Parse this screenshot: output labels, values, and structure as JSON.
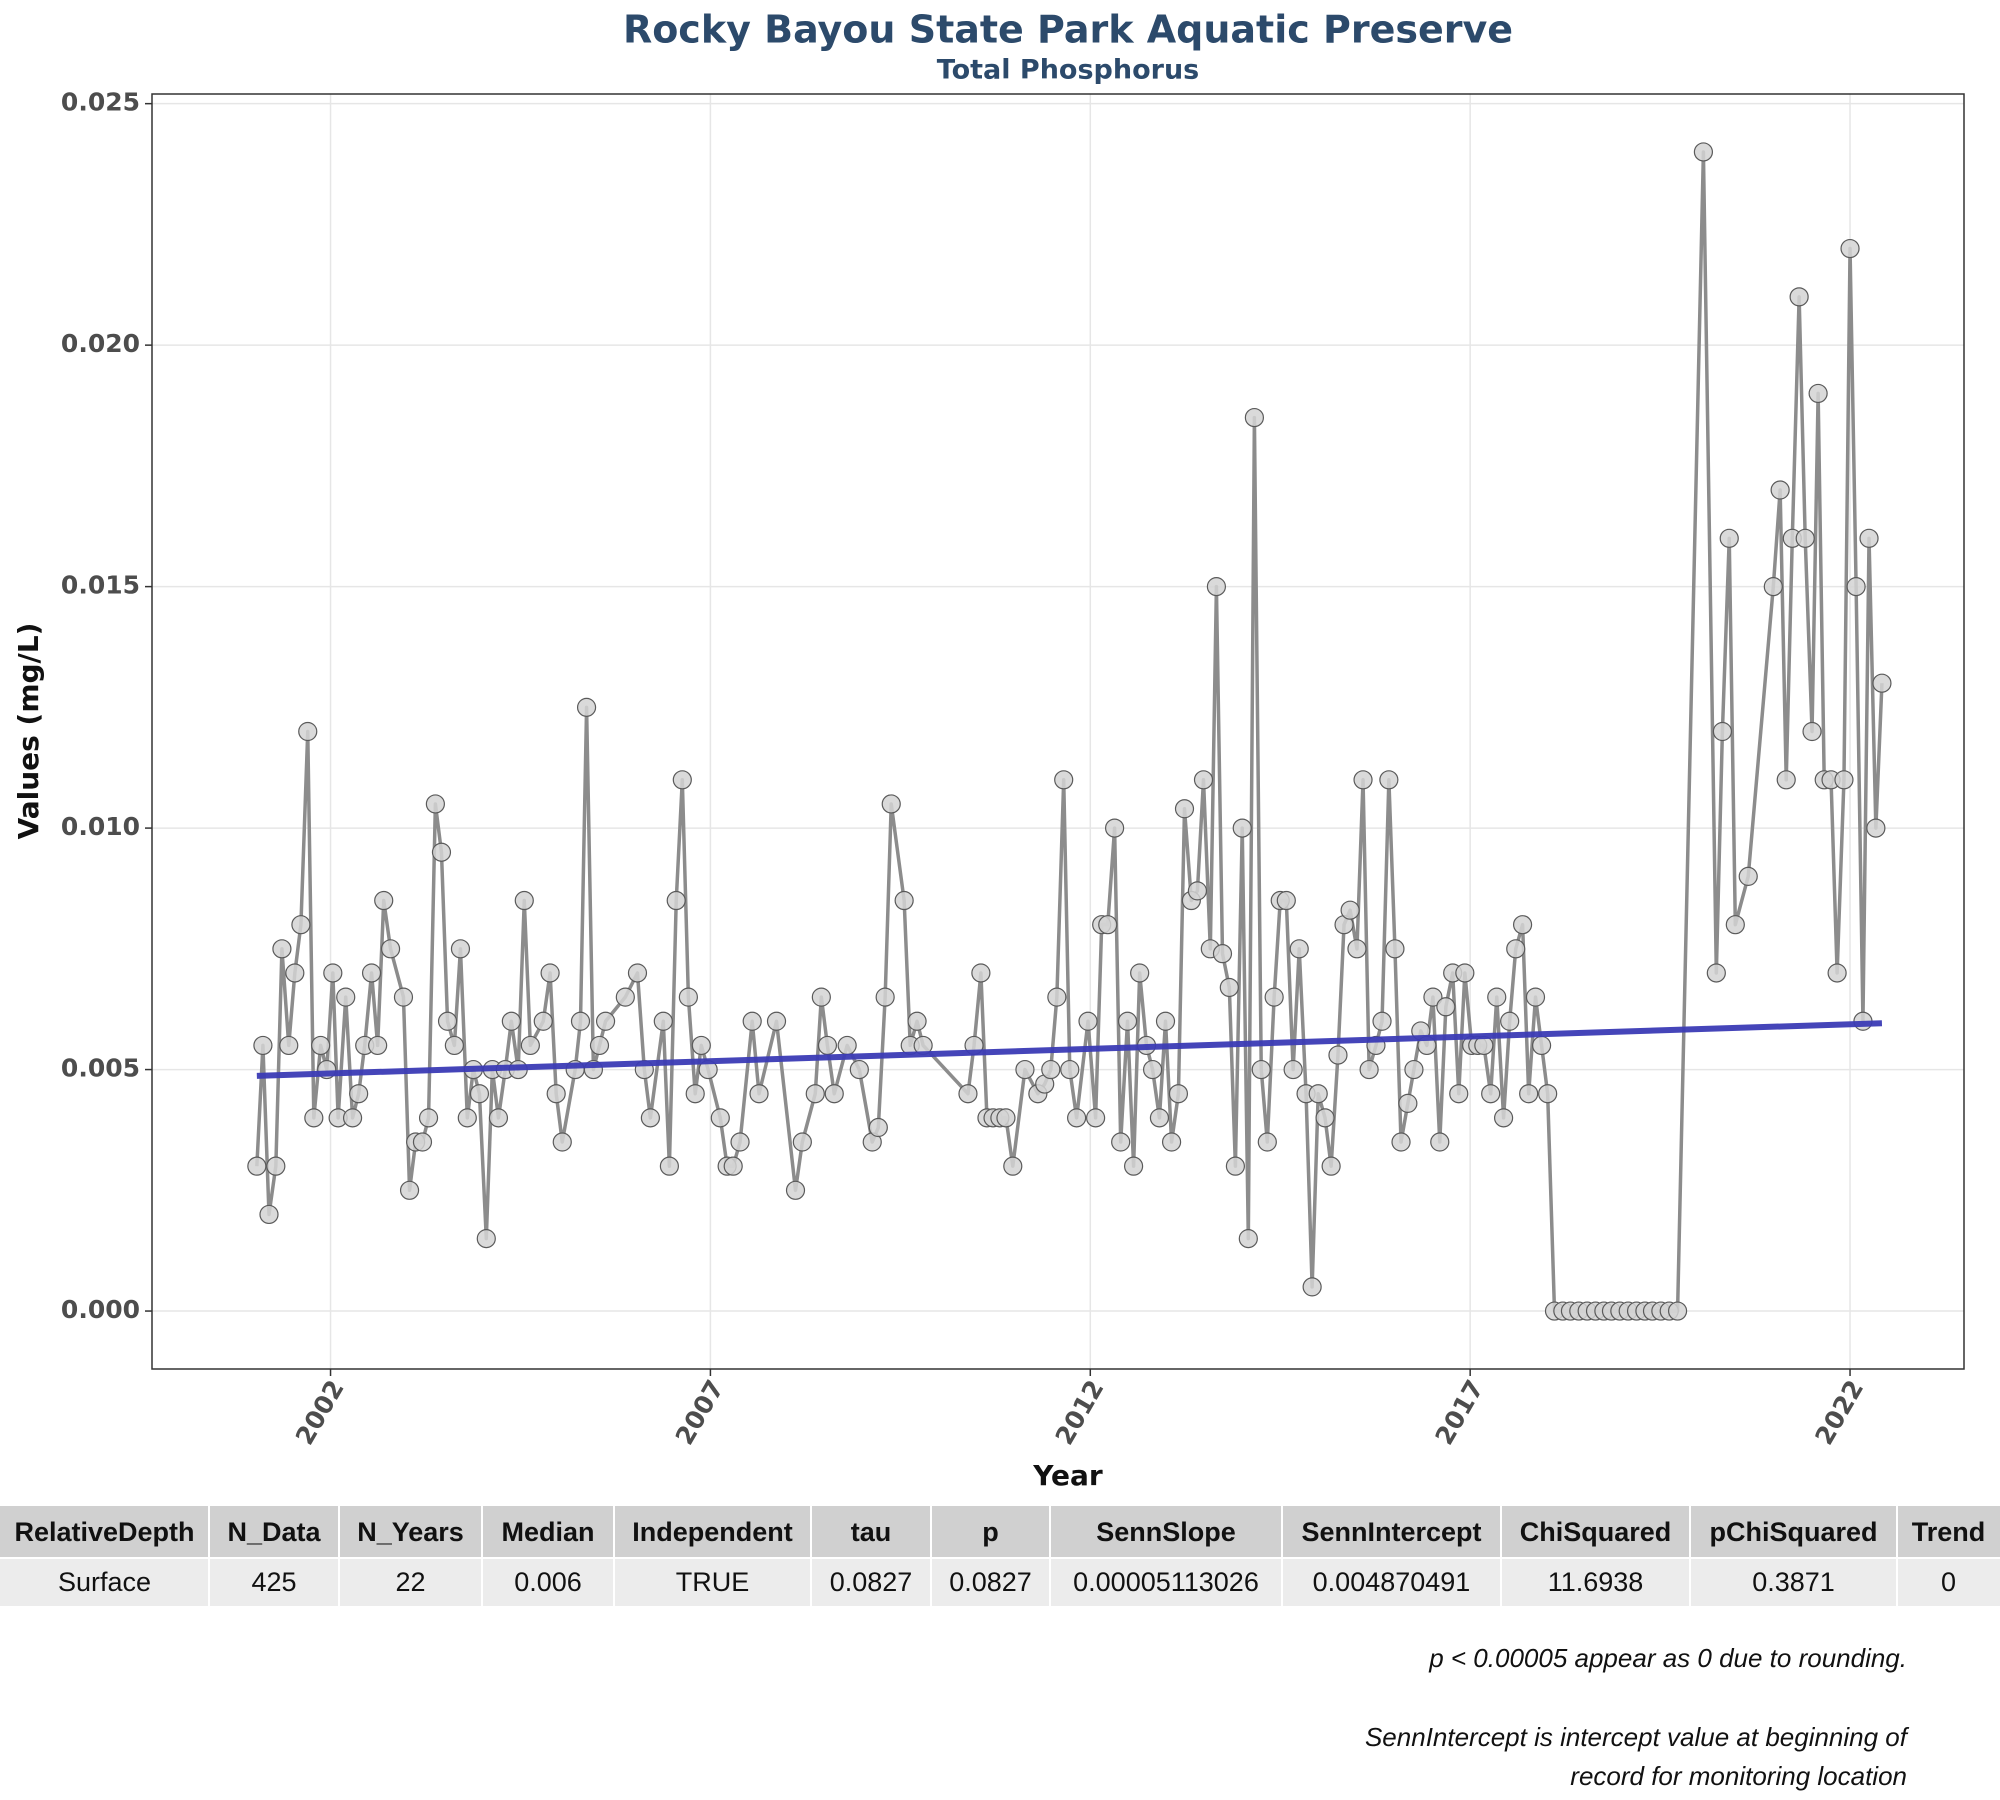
{
  "chart_data": {
    "type": "line",
    "title": "Rocky Bayou State Park Aquatic Preserve",
    "subtitle": "Total Phosphorus",
    "x_label": "Year",
    "y_label": "Values (mg/L)",
    "color": "#8c8c8c",
    "marker_fill": "#d4d4d4",
    "marker_stroke": "#5a5a5a",
    "grid": true,
    "xlim": [
      1999.65,
      2023.5
    ],
    "xticks": [
      2002,
      2007,
      2012,
      2017,
      2022
    ],
    "ylim": [
      -0.0012,
      0.0252
    ],
    "yticks": [
      {
        "value": 0,
        "label": "0.000"
      },
      {
        "value": 0.005,
        "label": "0.005"
      },
      {
        "value": 0.01,
        "label": "0.010"
      },
      {
        "value": 0.015,
        "label": "0.015"
      },
      {
        "value": 0.02,
        "label": "0.020"
      },
      {
        "value": 0.025,
        "label": "0.025"
      }
    ],
    "x": [
      2001.03,
      2001.11,
      2001.19,
      2001.28,
      2001.36,
      2001.45,
      2001.53,
      2001.61,
      2001.7,
      2001.78,
      2001.87,
      2001.95,
      2002.03,
      2002.1,
      2002.2,
      2002.29,
      2002.37,
      2002.45,
      2002.54,
      2002.62,
      2002.7,
      2002.79,
      2002.96,
      2003.04,
      2003.12,
      2003.21,
      2003.29,
      2003.38,
      2003.46,
      2003.54,
      2003.63,
      2003.71,
      2003.8,
      2003.88,
      2003.96,
      2004.05,
      2004.13,
      2004.21,
      2004.3,
      2004.38,
      2004.47,
      2004.55,
      2004.63,
      2004.8,
      2004.89,
      2004.97,
      2005.05,
      2005.22,
      2005.29,
      2005.37,
      2005.46,
      2005.54,
      2005.62,
      2005.88,
      2006.04,
      2006.13,
      2006.21,
      2006.38,
      2006.46,
      2006.55,
      2006.63,
      2006.71,
      2006.8,
      2006.88,
      2006.97,
      2007.13,
      2007.22,
      2007.3,
      2007.39,
      2007.55,
      2007.64,
      2007.87,
      2008.12,
      2008.21,
      2008.38,
      2008.46,
      2008.54,
      2008.63,
      2008.8,
      2008.96,
      2009.13,
      2009.21,
      2009.3,
      2009.38,
      2009.55,
      2009.63,
      2009.72,
      2009.8,
      2010.39,
      2010.47,
      2010.56,
      2010.64,
      2010.72,
      2010.81,
      2010.89,
      2010.98,
      2011.14,
      2011.31,
      2011.4,
      2011.48,
      2011.56,
      2011.65,
      2011.73,
      2011.82,
      2011.97,
      2012.07,
      2012.15,
      2012.23,
      2012.32,
      2012.4,
      2012.49,
      2012.57,
      2012.65,
      2012.74,
      2012.82,
      2012.91,
      2012.99,
      2013.07,
      2013.16,
      2013.24,
      2013.33,
      2013.41,
      2013.49,
      2013.58,
      2013.66,
      2013.74,
      2013.83,
      2013.91,
      2014.0,
      2014.08,
      2014.16,
      2014.25,
      2014.33,
      2014.42,
      2014.5,
      2014.58,
      2014.67,
      2014.75,
      2014.84,
      2014.92,
      2015.0,
      2015.09,
      2015.17,
      2015.26,
      2015.34,
      2015.42,
      2015.51,
      2015.59,
      2015.67,
      2015.76,
      2015.84,
      2015.93,
      2016.01,
      2016.09,
      2016.18,
      2016.26,
      2016.35,
      2016.43,
      2016.51,
      2016.6,
      2016.68,
      2016.77,
      2016.85,
      2016.93,
      2017.02,
      2017.1,
      2017.18,
      2017.27,
      2017.35,
      2017.44,
      2017.52,
      2017.6,
      2017.69,
      2017.77,
      2017.86,
      2017.94,
      2018.02,
      2018.11,
      2018.22,
      2018.32,
      2018.43,
      2018.54,
      2018.65,
      2018.76,
      2018.86,
      2018.97,
      2019.08,
      2019.19,
      2019.3,
      2019.4,
      2019.51,
      2019.62,
      2019.73,
      2020.07,
      2020.24,
      2020.32,
      2020.41,
      2020.49,
      2020.66,
      2020.99,
      2021.08,
      2021.16,
      2021.24,
      2021.33,
      2021.41,
      2021.5,
      2021.58,
      2021.66,
      2021.75,
      2021.83,
      2021.92,
      2022.0,
      2022.08,
      2022.17,
      2022.25,
      2022.34,
      2022.42
    ],
    "values": [
      0.003,
      0.0055,
      0.002,
      0.003,
      0.0075,
      0.0055,
      0.007,
      0.008,
      0.012,
      0.004,
      0.0055,
      0.005,
      0.007,
      0.004,
      0.0065,
      0.004,
      0.0045,
      0.0055,
      0.007,
      0.0055,
      0.0085,
      0.0075,
      0.0065,
      0.0025,
      0.0035,
      0.0035,
      0.004,
      0.0105,
      0.0095,
      0.006,
      0.0055,
      0.0075,
      0.004,
      0.005,
      0.0045,
      0.0015,
      0.005,
      0.004,
      0.005,
      0.006,
      0.005,
      0.0085,
      0.0055,
      0.006,
      0.007,
      0.0045,
      0.0035,
      0.005,
      0.006,
      0.0125,
      0.005,
      0.0055,
      0.006,
      0.0065,
      0.007,
      0.005,
      0.004,
      0.006,
      0.003,
      0.0085,
      0.011,
      0.0065,
      0.0045,
      0.0055,
      0.005,
      0.004,
      0.003,
      0.003,
      0.0035,
      0.006,
      0.0045,
      0.006,
      0.0025,
      0.0035,
      0.0045,
      0.0065,
      0.0055,
      0.0045,
      0.0055,
      0.005,
      0.0035,
      0.0038,
      0.0065,
      0.0105,
      0.0085,
      0.0055,
      0.006,
      0.0055,
      0.0045,
      0.0055,
      0.007,
      0.004,
      0.004,
      0.004,
      0.004,
      0.003,
      0.005,
      0.0045,
      0.0047,
      0.005,
      0.0065,
      0.011,
      0.005,
      0.004,
      0.006,
      0.004,
      0.008,
      0.008,
      0.01,
      0.0035,
      0.006,
      0.003,
      0.007,
      0.0055,
      0.005,
      0.004,
      0.006,
      0.0035,
      0.0045,
      0.0104,
      0.0085,
      0.0087,
      0.011,
      0.0075,
      0.015,
      0.0074,
      0.0067,
      0.003,
      0.01,
      0.0015,
      0.0185,
      0.005,
      0.0035,
      0.0065,
      0.0085,
      0.0085,
      0.005,
      0.0075,
      0.0045,
      0.0005,
      0.0045,
      0.004,
      0.003,
      0.0053,
      0.008,
      0.0083,
      0.0075,
      0.011,
      0.005,
      0.0055,
      0.006,
      0.011,
      0.0075,
      0.0035,
      0.0043,
      0.005,
      0.0058,
      0.0055,
      0.0065,
      0.0035,
      0.0063,
      0.007,
      0.0045,
      0.007,
      0.0055,
      0.0055,
      0.0055,
      0.0045,
      0.0065,
      0.004,
      0.006,
      0.0075,
      0.008,
      0.0045,
      0.0065,
      0.0055,
      0.0045,
      0,
      0,
      0,
      0,
      0,
      0,
      0,
      0,
      0,
      0,
      0,
      0,
      0,
      0,
      0,
      0,
      0.024,
      0.007,
      0.012,
      0.016,
      0.008,
      0.009,
      0.015,
      0.017,
      0.011,
      0.016,
      0.021,
      0.016,
      0.012,
      0.019,
      0.011,
      0.011,
      0.007,
      0.011,
      0.022,
      0.015,
      0.006,
      0.016,
      0.01,
      0.013
    ],
    "trend": {
      "x": [
        2001.03,
        2022.42
      ],
      "values": [
        0.00487,
        0.00596
      ],
      "color": "#3b3bb5"
    }
  },
  "table": {
    "columns": [
      "RelativeDepth",
      "N_Data",
      "N_Years",
      "Median",
      "Independent",
      "tau",
      "p",
      "SennSlope",
      "SennIntercept",
      "ChiSquared",
      "pChiSquared",
      "Trend"
    ],
    "rows": [
      [
        "Surface",
        "425",
        "22",
        "0.006",
        "TRUE",
        "0.0827",
        "0.0827",
        "0.00005113026",
        "0.004870491",
        "11.6938",
        "0.3871",
        "0"
      ]
    ]
  },
  "notes": [
    "p < 0.00005 appear as 0 due to rounding.",
    "SennIntercept is intercept value at beginning of",
    "record for monitoring location"
  ]
}
